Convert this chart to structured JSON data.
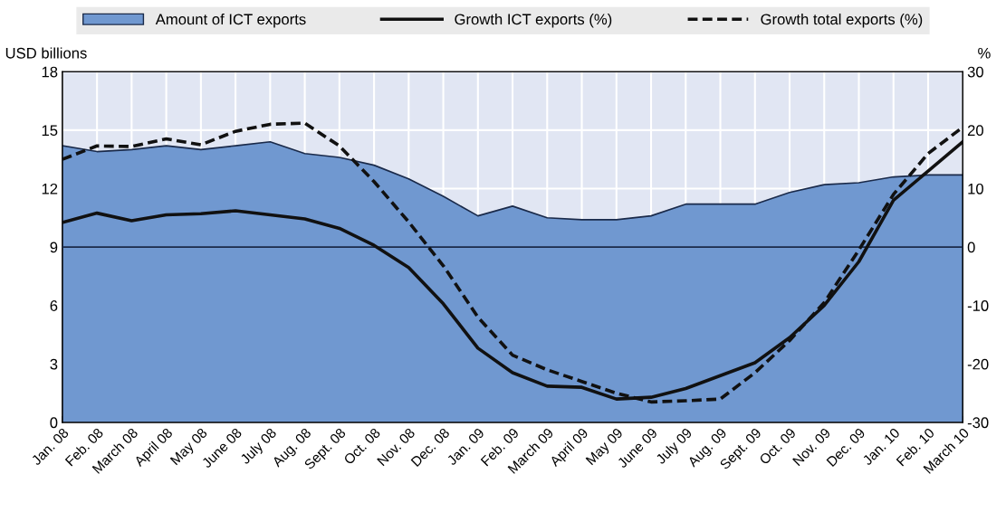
{
  "chart_data": {
    "type": "area",
    "ylabel": "USD billions",
    "y2label": "%",
    "categories": [
      "Jan. 08",
      "Feb. 08",
      "March 08",
      "April 08",
      "May 08",
      "June 08",
      "July 08",
      "Aug. 08",
      "Sept. 08",
      "Oct. 08",
      "Nov. 08",
      "Dec. 08",
      "Jan. 09",
      "Feb. 09",
      "March 09",
      "April 09",
      "May 09",
      "June 09",
      "July 09",
      "Aug. 09",
      "Sept. 09",
      "Oct. 09",
      "Nov. 09",
      "Dec. 09",
      "Jan. 10",
      "Feb. 10",
      "March 10"
    ],
    "series": [
      {
        "name": "Amount of ICT exports",
        "color": "#7098d0",
        "values": [
          14.2,
          13.9,
          14.0,
          14.2,
          14.0,
          14.2,
          14.4,
          13.8,
          13.6,
          13.2,
          12.5,
          11.6,
          10.6,
          11.1,
          10.5,
          10.4,
          10.4,
          10.6,
          11.2,
          11.2,
          11.2,
          11.8,
          12.2,
          12.3,
          12.6,
          12.7,
          12.7
        ]
      },
      {
        "name": "Growth ICT exports (%)",
        "type": "line",
        "axis": "y2",
        "color": "#111111",
        "line_style": "solid",
        "values": [
          4.2,
          5.8,
          4.5,
          5.5,
          5.7,
          6.2,
          5.5,
          4.8,
          3.2,
          0.3,
          -3.5,
          -9.7,
          -17.3,
          -21.5,
          -23.8,
          -24,
          -26,
          -25.7,
          -24.2,
          -22,
          -19.8,
          -15.5,
          -10,
          -2.5,
          8,
          13,
          18
        ]
      },
      {
        "name": "Growth total exports (%)",
        "type": "line",
        "axis": "y2",
        "color": "#111111",
        "line_style": "dashed",
        "values": [
          15,
          17.3,
          17.2,
          18.5,
          17.5,
          19.8,
          21,
          21.2,
          17.3,
          11.2,
          4.3,
          -3.2,
          -12,
          -18.5,
          -21,
          -23,
          -25,
          -26.5,
          -26.3,
          -26,
          -21.5,
          -16,
          -9.5,
          -0.5,
          9,
          16,
          20.5
        ]
      }
    ],
    "ylim": [
      0,
      18
    ],
    "yticks": [
      0,
      3,
      6,
      9,
      12,
      15,
      18
    ],
    "y2lim": [
      -30,
      30
    ],
    "y2ticks": [
      -30,
      -20,
      -10,
      0,
      10,
      20,
      30
    ],
    "ref_lines": [
      {
        "axis": "y2",
        "value": 0,
        "color": "#1a2a4a"
      }
    ],
    "grid": true,
    "legend": "top"
  }
}
